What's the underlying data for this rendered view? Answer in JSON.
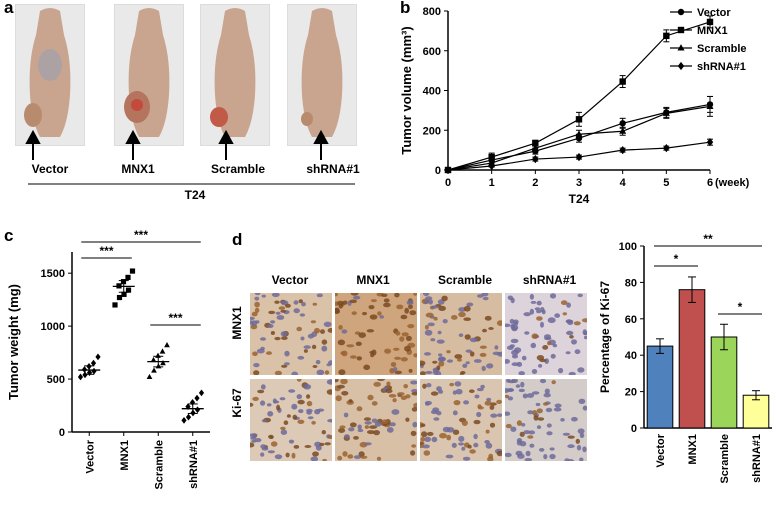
{
  "panels": {
    "a": "a",
    "b": "b",
    "c": "c",
    "d": "d"
  },
  "panel_a": {
    "groups": [
      "Vector",
      "MNX1",
      "Scramble",
      "shRNA#1"
    ],
    "cell_line": "T24"
  },
  "panel_d_images": {
    "columns": [
      "Vector",
      "MNX1",
      "Scramble",
      "shRNA#1"
    ],
    "rows": [
      "MNX1",
      "Ki-67"
    ]
  },
  "chart_data": [
    {
      "id": "b",
      "type": "line",
      "title": "",
      "xlabel": "T24",
      "x_unit": "(week)",
      "ylabel": "Tumor volume (mm³)",
      "x": [
        0,
        1,
        2,
        3,
        4,
        5,
        6
      ],
      "ylim": [
        0,
        800
      ],
      "yticks": [
        0,
        200,
        400,
        600,
        800
      ],
      "legend_position": "top-right",
      "series": [
        {
          "name": "Vector",
          "marker": "circle",
          "values": [
            0,
            50,
            95,
            160,
            235,
            290,
            330
          ],
          "errors": [
            0,
            15,
            15,
            20,
            25,
            25,
            40
          ]
        },
        {
          "name": "MNX1",
          "marker": "square",
          "values": [
            0,
            65,
            135,
            255,
            445,
            675,
            745
          ],
          "errors": [
            0,
            20,
            15,
            35,
            30,
            30,
            30
          ]
        },
        {
          "name": "Scramble",
          "marker": "triangle",
          "values": [
            0,
            35,
            110,
            180,
            195,
            285,
            320
          ],
          "errors": [
            0,
            15,
            15,
            20,
            20,
            25,
            50
          ]
        },
        {
          "name": "shRNA#1",
          "marker": "diamond",
          "values": [
            0,
            20,
            55,
            65,
            100,
            110,
            140
          ],
          "errors": [
            0,
            5,
            10,
            10,
            10,
            10,
            15
          ]
        }
      ]
    },
    {
      "id": "c",
      "type": "scatter",
      "title": "",
      "xlabel": "",
      "ylabel": "Tumor weight (mg)",
      "categories": [
        "Vector",
        "MNX1",
        "Scramble",
        "shRNA#1"
      ],
      "ylim": [
        0,
        1700
      ],
      "yticks": [
        0,
        500,
        1000,
        1500
      ],
      "markers": [
        "diamond",
        "square",
        "triangle",
        "diamond"
      ],
      "points": [
        [
          520,
          540,
          560,
          575,
          590,
          620,
          650,
          710
        ],
        [
          1200,
          1270,
          1300,
          1340,
          1380,
          1420,
          1460,
          1520
        ],
        [
          520,
          580,
          620,
          650,
          680,
          720,
          760,
          820
        ],
        [
          110,
          140,
          180,
          210,
          240,
          280,
          320,
          370
        ]
      ],
      "means": [
        585,
        1375,
        665,
        220
      ],
      "sem": [
        40,
        55,
        50,
        45
      ],
      "significance": [
        {
          "from": 0,
          "to": 1,
          "label": "***"
        },
        {
          "from": 0,
          "to": 3,
          "label": "***"
        },
        {
          "from": 2,
          "to": 3,
          "label": "***"
        }
      ]
    },
    {
      "id": "d",
      "type": "bar",
      "title": "",
      "xlabel": "",
      "ylabel": "Percentage of Ki-67",
      "categories": [
        "Vector",
        "MNX1",
        "Scramble",
        "shRNA#1"
      ],
      "values": [
        45,
        76,
        50,
        18
      ],
      "errors": [
        4,
        7,
        7,
        2.5
      ],
      "colors": [
        "#4f81bd",
        "#c0504d",
        "#9bd65a",
        "#ffff99"
      ],
      "ylim": [
        0,
        100
      ],
      "yticks": [
        0,
        20,
        40,
        60,
        80,
        100
      ],
      "significance": [
        {
          "from": 0,
          "to": 1,
          "label": "*"
        },
        {
          "from": 0,
          "to": 3,
          "label": "**"
        },
        {
          "from": 2,
          "to": 3,
          "label": "*"
        }
      ]
    }
  ]
}
